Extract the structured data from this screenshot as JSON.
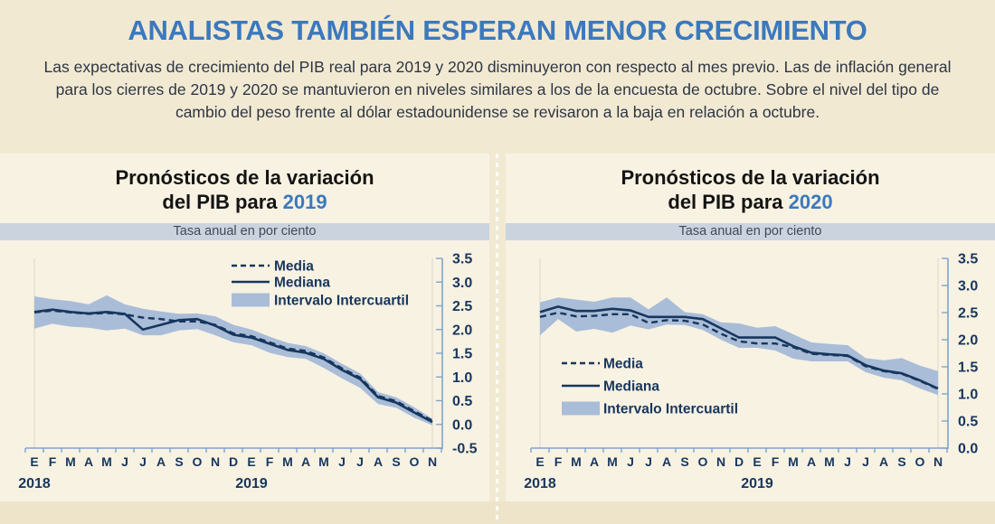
{
  "header": {
    "title": "ANALISTAS TAMBIÉN ESPERAN MENOR CRECIMIENTO",
    "subtitle": "Las expectativas de crecimiento del PIB real para 2019 y 2020 disminuyeron con respecto al mes previo. Las de inflación general para los cierres de 2019 y 2020 se mantuvieron en niveles similares a los de la encuesta de octubre. Sobre el nivel del tipo de cambio del peso frente al dólar estadounidense se revisaron a la baja en relación a octubre."
  },
  "colors": {
    "accent_blue": "#3b79bd",
    "navy": "#17365d",
    "band_fill": "#a9bdd8",
    "axis_blue": "#7ea4ce",
    "panel_bg": "#f8f2e3",
    "outer_bg": "#f2e9d3",
    "units_band_bg": "#cbd3de",
    "faint_border": "#ddd6c6"
  },
  "chart_data": [
    {
      "type": "line",
      "title_line1": "Pronósticos de la variación",
      "title_line2_prefix": "del PIB para ",
      "title_year": "2019",
      "units_label": "Tasa anual en por ciento",
      "legend": {
        "media": "Media",
        "mediana": "Mediana",
        "banda": "Intervalo Intercuartil"
      },
      "legend_position": "top-right",
      "x_labels": [
        "E",
        "F",
        "M",
        "A",
        "M",
        "J",
        "J",
        "A",
        "S",
        "O",
        "N",
        "D",
        "E",
        "F",
        "M",
        "A",
        "M",
        "J",
        "J",
        "A",
        "S",
        "O",
        "N"
      ],
      "year_labels": [
        {
          "label": "2018",
          "month_index": 0
        },
        {
          "label": "2019",
          "month_index": 12
        }
      ],
      "ylim": [
        -0.5,
        3.5
      ],
      "ytick_step": 0.5,
      "series": [
        {
          "name": "Media",
          "style": "dashed",
          "values": [
            2.36,
            2.4,
            2.36,
            2.33,
            2.35,
            2.32,
            2.25,
            2.22,
            2.17,
            2.17,
            2.1,
            1.92,
            1.86,
            1.73,
            1.6,
            1.55,
            1.41,
            1.18,
            0.99,
            0.6,
            0.49,
            0.28,
            0.08
          ]
        },
        {
          "name": "Mediana",
          "style": "solid",
          "values": [
            2.37,
            2.42,
            2.37,
            2.34,
            2.37,
            2.33,
            2.0,
            2.1,
            2.2,
            2.22,
            2.08,
            1.89,
            1.83,
            1.7,
            1.57,
            1.51,
            1.38,
            1.15,
            0.96,
            0.57,
            0.46,
            0.25,
            0.05
          ]
        },
        {
          "name": "Intervalo Intercuartil (superior)",
          "style": "band-upper",
          "values": [
            2.7,
            2.64,
            2.6,
            2.53,
            2.72,
            2.53,
            2.44,
            2.38,
            2.33,
            2.34,
            2.28,
            2.1,
            2.0,
            1.85,
            1.72,
            1.65,
            1.5,
            1.28,
            1.08,
            0.68,
            0.57,
            0.36,
            0.12
          ]
        },
        {
          "name": "Intervalo Intercuartil (inferior)",
          "style": "band-lower",
          "values": [
            2.02,
            2.12,
            2.06,
            2.04,
            1.98,
            2.02,
            1.88,
            1.88,
            1.98,
            2.01,
            1.88,
            1.73,
            1.67,
            1.51,
            1.42,
            1.38,
            1.19,
            0.97,
            0.77,
            0.43,
            0.35,
            0.14,
            -0.02
          ]
        }
      ]
    },
    {
      "type": "line",
      "title_line1": "Pronósticos de la variación",
      "title_line2_prefix": "del PIB para ",
      "title_year": "2020",
      "units_label": "Tasa anual en por ciento",
      "legend": {
        "media": "Media",
        "mediana": "Mediana",
        "banda": "Intervalo Intercuartil"
      },
      "legend_position": "mid-left",
      "x_labels": [
        "E",
        "F",
        "M",
        "A",
        "M",
        "J",
        "J",
        "A",
        "S",
        "O",
        "N",
        "D",
        "E",
        "F",
        "M",
        "A",
        "M",
        "J",
        "J",
        "A",
        "S",
        "O",
        "N"
      ],
      "year_labels": [
        {
          "label": "2018",
          "month_index": 0
        },
        {
          "label": "2019",
          "month_index": 12
        }
      ],
      "ylim": [
        0.0,
        3.5
      ],
      "ytick_step": 0.5,
      "series": [
        {
          "name": "Media",
          "style": "dashed",
          "values": [
            2.42,
            2.5,
            2.43,
            2.44,
            2.47,
            2.47,
            2.31,
            2.36,
            2.35,
            2.28,
            2.11,
            1.97,
            1.93,
            1.93,
            1.86,
            1.74,
            1.72,
            1.7,
            1.51,
            1.42,
            1.37,
            1.24,
            1.09
          ]
        },
        {
          "name": "Mediana",
          "style": "solid",
          "values": [
            2.51,
            2.61,
            2.53,
            2.53,
            2.57,
            2.54,
            2.42,
            2.42,
            2.42,
            2.38,
            2.21,
            2.04,
            2.04,
            2.04,
            1.88,
            1.76,
            1.73,
            1.71,
            1.53,
            1.43,
            1.38,
            1.25,
            1.1
          ]
        },
        {
          "name": "Intervalo Intercuartil (superior)",
          "style": "band-upper",
          "values": [
            2.69,
            2.78,
            2.74,
            2.7,
            2.78,
            2.78,
            2.56,
            2.78,
            2.51,
            2.47,
            2.32,
            2.3,
            2.22,
            2.25,
            2.1,
            1.95,
            1.92,
            1.9,
            1.66,
            1.62,
            1.66,
            1.52,
            1.42
          ]
        },
        {
          "name": "Intervalo Intercuartil (inferior)",
          "style": "band-lower",
          "values": [
            2.08,
            2.38,
            2.15,
            2.2,
            2.13,
            2.26,
            2.19,
            2.28,
            2.27,
            2.18,
            2.0,
            1.85,
            1.85,
            1.8,
            1.65,
            1.6,
            1.6,
            1.6,
            1.4,
            1.3,
            1.25,
            1.1,
            0.98
          ]
        }
      ]
    }
  ]
}
